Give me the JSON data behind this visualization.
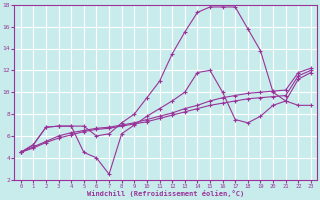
{
  "xlabel": "Windchill (Refroidissement éolien,°C)",
  "bg_color": "#c8ecec",
  "grid_color": "#ffffff",
  "line_color": "#993399",
  "xlim": [
    -0.5,
    23.5
  ],
  "ylim": [
    2,
    18
  ],
  "xticks": [
    0,
    1,
    2,
    3,
    4,
    5,
    6,
    7,
    8,
    9,
    10,
    11,
    12,
    13,
    14,
    15,
    16,
    17,
    18,
    19,
    20,
    21,
    22,
    23
  ],
  "yticks": [
    2,
    4,
    6,
    8,
    10,
    12,
    14,
    16,
    18
  ],
  "line1_x": [
    0,
    1,
    2,
    3,
    4,
    5,
    6,
    7,
    8,
    9,
    10,
    11,
    12,
    13,
    14,
    15,
    16,
    17,
    18,
    19,
    20,
    21,
    22,
    23
  ],
  "line1_y": [
    4.5,
    5.2,
    6.8,
    6.9,
    6.9,
    4.5,
    4.0,
    2.5,
    6.2,
    7.0,
    7.8,
    8.5,
    9.2,
    10.0,
    11.8,
    12.0,
    10.0,
    7.5,
    7.2,
    7.8,
    8.8,
    9.2,
    11.2,
    11.8
  ],
  "line2_x": [
    0,
    1,
    2,
    3,
    4,
    5,
    6,
    7,
    8,
    9,
    10,
    11,
    12,
    13,
    14,
    15,
    16,
    17,
    18,
    19,
    20,
    21,
    22,
    23
  ],
  "line2_y": [
    4.5,
    5.2,
    6.8,
    6.9,
    6.9,
    6.9,
    6.0,
    6.2,
    7.2,
    8.0,
    9.5,
    11.0,
    13.5,
    15.5,
    17.3,
    17.8,
    17.8,
    17.8,
    15.8,
    13.8,
    10.0,
    9.2,
    8.8,
    8.8
  ],
  "line3_x": [
    0,
    1,
    2,
    3,
    4,
    5,
    6,
    7,
    8,
    9,
    10,
    11,
    12,
    13,
    14,
    15,
    16,
    17,
    18,
    19,
    20,
    21,
    22,
    23
  ],
  "line3_y": [
    4.5,
    5.0,
    5.5,
    6.0,
    6.3,
    6.5,
    6.7,
    6.8,
    7.0,
    7.2,
    7.5,
    7.8,
    8.1,
    8.5,
    8.8,
    9.2,
    9.5,
    9.7,
    9.9,
    10.0,
    10.1,
    10.2,
    11.8,
    12.2
  ],
  "line4_x": [
    0,
    1,
    2,
    3,
    4,
    5,
    6,
    7,
    8,
    9,
    10,
    11,
    12,
    13,
    14,
    15,
    16,
    17,
    18,
    19,
    20,
    21,
    22,
    23
  ],
  "line4_y": [
    4.5,
    4.9,
    5.4,
    5.8,
    6.1,
    6.4,
    6.6,
    6.7,
    6.9,
    7.1,
    7.3,
    7.6,
    7.9,
    8.2,
    8.5,
    8.8,
    9.0,
    9.2,
    9.4,
    9.5,
    9.6,
    9.7,
    11.5,
    12.0
  ]
}
